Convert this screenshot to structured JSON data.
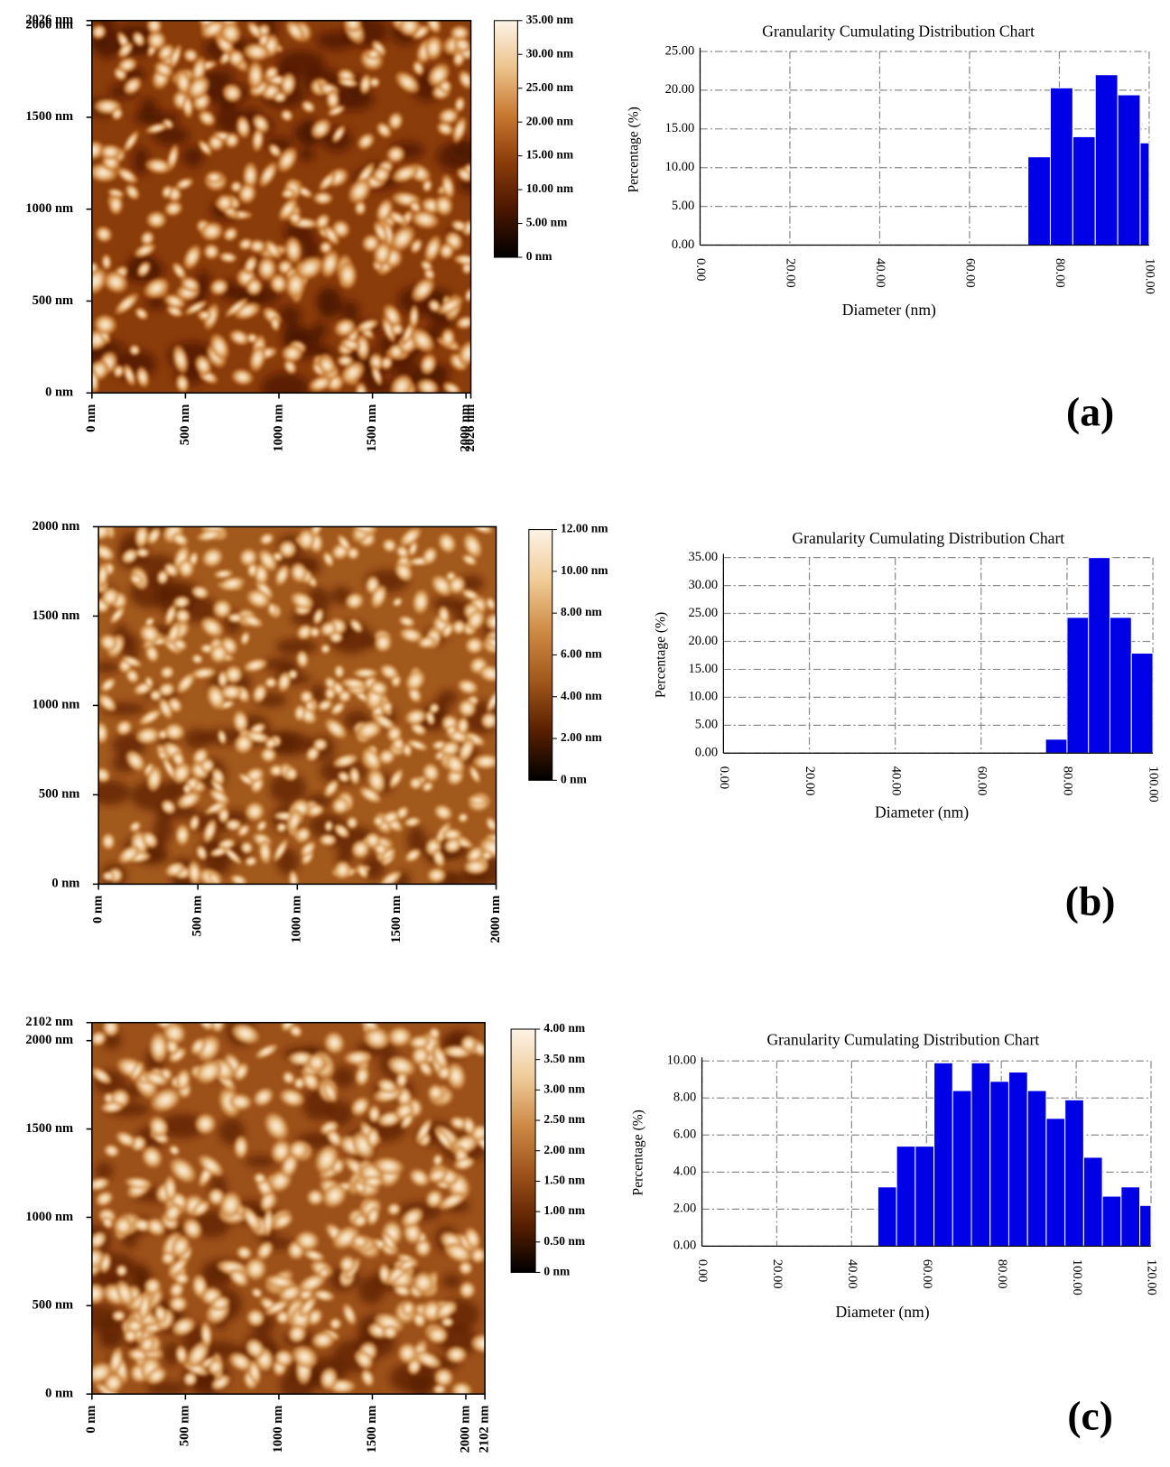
{
  "chart_data": [
    {
      "type": "image",
      "xlim": [
        0,
        2026
      ],
      "ylim": [
        0,
        2026
      ],
      "xticks": [
        {
          "value": 0,
          "label": "0 nm"
        },
        {
          "value": 500,
          "label": "500 nm"
        },
        {
          "value": 1000,
          "label": "1000 nm"
        },
        {
          "value": 1500,
          "label": "1500 nm"
        },
        {
          "value": 2000,
          "label": "2000 nm"
        },
        {
          "value": 2026,
          "label": "2026 nm"
        }
      ],
      "yticks": [
        {
          "value": 0,
          "label": "0 nm"
        },
        {
          "value": 500,
          "label": "500 nm"
        },
        {
          "value": 1000,
          "label": "1000 nm"
        },
        {
          "value": 1500,
          "label": "1500 nm"
        },
        {
          "value": 2000,
          "label": "2000 nm"
        },
        {
          "value": 2026,
          "label": "2026 nm"
        }
      ],
      "zlim": [
        0,
        35
      ],
      "zticks": [
        {
          "value": 0,
          "label": "0 nm"
        },
        {
          "value": 5,
          "label": "5.00 nm"
        },
        {
          "value": 10,
          "label": "10.00 nm"
        },
        {
          "value": 15,
          "label": "15.00 nm"
        },
        {
          "value": 20,
          "label": "20.00 nm"
        },
        {
          "value": 25,
          "label": "25.00 nm"
        },
        {
          "value": 30,
          "label": "30.00 nm"
        },
        {
          "value": 35,
          "label": "35.00 nm"
        }
      ],
      "colormap": [
        "#000000",
        "#4a1600",
        "#8a3c0a",
        "#c7782f",
        "#ecc38c",
        "#fdf3e6"
      ]
    },
    {
      "type": "histogram",
      "title": "Granularity Cumulating Distribution Chart",
      "xlabel": "Diameter (nm)",
      "ylabel": "Percentage (%)",
      "panel_label": "(a)",
      "bins": [
        73,
        78,
        83,
        88,
        93,
        98,
        100
      ],
      "counts": [
        11.4,
        20.3,
        14.0,
        22.0,
        19.4,
        13.2
      ],
      "color": "#0000e6",
      "xlim": [
        0,
        100
      ],
      "ylim": [
        0,
        25
      ],
      "xticks": [
        {
          "value": 0,
          "label": "0.00"
        },
        {
          "value": 20,
          "label": "20.00"
        },
        {
          "value": 40,
          "label": "40.00"
        },
        {
          "value": 60,
          "label": "60.00"
        },
        {
          "value": 80,
          "label": "80.00"
        },
        {
          "value": 100,
          "label": "100.00"
        }
      ],
      "yticks": [
        {
          "value": 0,
          "label": "0.00"
        },
        {
          "value": 5,
          "label": "5.00"
        },
        {
          "value": 10,
          "label": "10.00"
        },
        {
          "value": 15,
          "label": "15.00"
        },
        {
          "value": 20,
          "label": "20.00"
        },
        {
          "value": 25,
          "label": "25.00"
        }
      ],
      "grid": true
    },
    {
      "type": "image",
      "xlim": [
        0,
        2000
      ],
      "ylim": [
        0,
        2000
      ],
      "xticks": [
        {
          "value": 0,
          "label": "0 nm"
        },
        {
          "value": 500,
          "label": "500 nm"
        },
        {
          "value": 1000,
          "label": "1000 nm"
        },
        {
          "value": 1500,
          "label": "1500 nm"
        },
        {
          "value": 2000,
          "label": "2000 nm"
        }
      ],
      "yticks": [
        {
          "value": 0,
          "label": "0 nm"
        },
        {
          "value": 500,
          "label": "500 nm"
        },
        {
          "value": 1000,
          "label": "1000 nm"
        },
        {
          "value": 1500,
          "label": "1500 nm"
        },
        {
          "value": 2000,
          "label": "2000 nm"
        }
      ],
      "zlim": [
        0,
        12
      ],
      "zticks": [
        {
          "value": 0,
          "label": "0 nm"
        },
        {
          "value": 2,
          "label": "2.00 nm"
        },
        {
          "value": 4,
          "label": "4.00 nm"
        },
        {
          "value": 6,
          "label": "6.00 nm"
        },
        {
          "value": 8,
          "label": "8.00 nm"
        },
        {
          "value": 10,
          "label": "10.00 nm"
        },
        {
          "value": 12,
          "label": "12.00 nm"
        }
      ],
      "colormap": [
        "#000000",
        "#5a2000",
        "#a2591c",
        "#cf8c46",
        "#f0cc98",
        "#fdf3e6"
      ]
    },
    {
      "type": "histogram",
      "title": "Granularity Cumulating Distribution Chart",
      "xlabel": "Diameter (nm)",
      "ylabel": "Percentage (%)",
      "panel_label": "(b)",
      "bins": [
        75,
        80,
        85,
        90,
        95,
        100
      ],
      "counts": [
        2.5,
        24.3,
        35.0,
        24.3,
        17.9
      ],
      "color": "#0000e6",
      "xlim": [
        0,
        100
      ],
      "ylim": [
        0,
        35
      ],
      "xticks": [
        {
          "value": 0,
          "label": "0.00"
        },
        {
          "value": 20,
          "label": "20.00"
        },
        {
          "value": 40,
          "label": "40.00"
        },
        {
          "value": 60,
          "label": "60.00"
        },
        {
          "value": 80,
          "label": "80.00"
        },
        {
          "value": 100,
          "label": "100.00"
        }
      ],
      "yticks": [
        {
          "value": 0,
          "label": "0.00"
        },
        {
          "value": 5,
          "label": "5.00"
        },
        {
          "value": 10,
          "label": "10.00"
        },
        {
          "value": 15,
          "label": "15.00"
        },
        {
          "value": 20,
          "label": "20.00"
        },
        {
          "value": 25,
          "label": "25.00"
        },
        {
          "value": 30,
          "label": "30.00"
        },
        {
          "value": 35,
          "label": "35.00"
        }
      ],
      "grid": true
    },
    {
      "type": "image",
      "xlim": [
        0,
        2102
      ],
      "ylim": [
        0,
        2102
      ],
      "xticks": [
        {
          "value": 0,
          "label": "0 nm"
        },
        {
          "value": 500,
          "label": "500 nm"
        },
        {
          "value": 1000,
          "label": "1000 nm"
        },
        {
          "value": 1500,
          "label": "1500 nm"
        },
        {
          "value": 2000,
          "label": "2000 nm"
        },
        {
          "value": 2102,
          "label": "2102 nm"
        }
      ],
      "yticks": [
        {
          "value": 0,
          "label": "0 nm"
        },
        {
          "value": 500,
          "label": "500 nm"
        },
        {
          "value": 1000,
          "label": "1000 nm"
        },
        {
          "value": 1500,
          "label": "1500 nm"
        },
        {
          "value": 2000,
          "label": "2000 nm"
        },
        {
          "value": 2102,
          "label": "2102 nm"
        }
      ],
      "zlim": [
        0,
        4
      ],
      "zticks": [
        {
          "value": 0,
          "label": "0 nm"
        },
        {
          "value": 0.5,
          "label": "0.50 nm"
        },
        {
          "value": 1,
          "label": "1.00 nm"
        },
        {
          "value": 1.5,
          "label": "1.50 nm"
        },
        {
          "value": 2,
          "label": "2.00 nm"
        },
        {
          "value": 2.5,
          "label": "2.50 nm"
        },
        {
          "value": 3,
          "label": "3.00 nm"
        },
        {
          "value": 3.5,
          "label": "3.50 nm"
        },
        {
          "value": 4,
          "label": "4.00 nm"
        }
      ],
      "colormap": [
        "#000000",
        "#5a2000",
        "#9c5119",
        "#cd8844",
        "#efcb98",
        "#fdf3e6"
      ]
    },
    {
      "type": "histogram",
      "title": "Granularity Cumulating Distribution Chart",
      "xlabel": "Diameter (nm)",
      "ylabel": "Percentage (%)",
      "panel_label": "(c)",
      "bins": [
        47,
        52,
        57,
        62,
        67,
        72,
        77,
        82,
        87,
        92,
        97,
        102,
        107,
        112,
        117,
        120
      ],
      "counts": [
        3.2,
        5.4,
        5.4,
        9.9,
        8.4,
        9.9,
        8.9,
        9.4,
        8.4,
        6.9,
        7.9,
        4.8,
        2.7,
        3.2,
        2.2
      ],
      "color": "#0000e6",
      "xlim": [
        0,
        120
      ],
      "ylim": [
        0,
        10
      ],
      "xticks": [
        {
          "value": 0,
          "label": "0.00"
        },
        {
          "value": 20,
          "label": "20.00"
        },
        {
          "value": 40,
          "label": "40.00"
        },
        {
          "value": 60,
          "label": "60.00"
        },
        {
          "value": 80,
          "label": "80.00"
        },
        {
          "value": 100,
          "label": "100.00"
        },
        {
          "value": 120,
          "label": "120.00"
        }
      ],
      "yticks": [
        {
          "value": 0,
          "label": "0.00"
        },
        {
          "value": 2,
          "label": "2.00"
        },
        {
          "value": 4,
          "label": "4.00"
        },
        {
          "value": 6,
          "label": "6.00"
        },
        {
          "value": 8,
          "label": "8.00"
        },
        {
          "value": 10,
          "label": "10.00"
        }
      ],
      "grid": true
    }
  ]
}
